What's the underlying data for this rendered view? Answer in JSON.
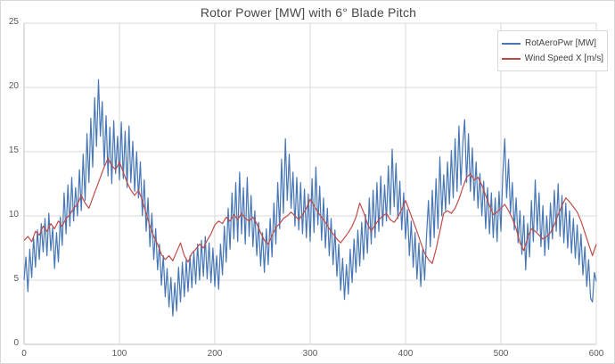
{
  "chart": {
    "title": "Rotor Power [MW] with 6° Blade Pitch",
    "legend": {
      "entries": [
        {
          "label": "RotAeroPwr [MW]",
          "color": "#4676b5"
        },
        {
          "label": "Wind Speed X [m/s]",
          "color": "#bf4b47"
        }
      ]
    }
  },
  "chart_data": {
    "type": "line",
    "title": "Rotor Power [MW] with 6° Blade Pitch",
    "xlabel": "",
    "ylabel": "",
    "xlim": [
      0,
      600
    ],
    "ylim": [
      0,
      25
    ],
    "grid": "horizontal-and-vertical",
    "legend_position": "top-right",
    "x_ticks": [
      "0",
      "100",
      "200",
      "300",
      "400",
      "500",
      "600"
    ],
    "y_ticks": [
      "0",
      "5",
      "10",
      "15",
      "20",
      "25"
    ],
    "accent_colors": {
      "blue": "#4676b5",
      "red": "#bf4b47",
      "gridline": "#d9d9d9",
      "axis": "#bfbfbf"
    },
    "series": [
      {
        "name": "RotAeroPwr [MW]",
        "color": "#4676b5",
        "x_start": 0,
        "x_step": 2,
        "values": [
          5.0,
          6.8,
          4.1,
          7.4,
          5.2,
          8.3,
          6.0,
          8.9,
          6.6,
          9.4,
          7.2,
          9.8,
          6.9,
          10.2,
          7.3,
          9.1,
          5.9,
          8.7,
          6.4,
          9.9,
          7.7,
          11.8,
          8.6,
          12.4,
          9.2,
          13.0,
          9.6,
          12.2,
          10.0,
          13.6,
          10.4,
          14.8,
          11.2,
          16.4,
          12.6,
          17.6,
          13.8,
          19.2,
          15.4,
          20.6,
          16.2,
          18.9,
          13.9,
          17.8,
          13.1,
          16.9,
          12.5,
          17.4,
          13.3,
          16.2,
          12.8,
          17.3,
          12.9,
          16.6,
          12.2,
          17.0,
          12.6,
          15.8,
          11.9,
          15.0,
          11.4,
          14.2,
          10.0,
          12.8,
          8.8,
          11.4,
          7.6,
          10.2,
          6.6,
          9.0,
          5.8,
          7.8,
          4.6,
          6.9,
          3.7,
          5.9,
          2.9,
          5.2,
          2.2,
          4.8,
          2.6,
          6.0,
          3.3,
          6.4,
          3.7,
          6.6,
          4.1,
          6.9,
          4.4,
          7.2,
          4.7,
          7.8,
          5.0,
          8.1,
          5.3,
          8.4,
          5.1,
          7.9,
          4.8,
          7.5,
          4.5,
          6.9,
          4.3,
          7.8,
          5.4,
          9.2,
          6.4,
          10.6,
          7.4,
          11.8,
          8.2,
          12.6,
          8.0,
          13.4,
          8.6,
          12.2,
          7.8,
          13.0,
          8.4,
          11.6,
          7.6,
          10.4,
          6.9,
          9.5,
          6.1,
          8.7,
          5.6,
          9.0,
          6.2,
          9.8,
          6.8,
          11.0,
          7.8,
          12.6,
          9.0,
          14.4,
          10.2,
          16.0,
          11.2,
          14.8,
          10.6,
          13.4,
          9.2,
          13.0,
          8.9,
          12.6,
          8.6,
          12.1,
          8.3,
          11.7,
          8.0,
          12.9,
          8.7,
          13.8,
          9.3,
          12.3,
          8.1,
          11.4,
          7.5,
          10.6,
          6.9,
          9.8,
          6.2,
          8.9,
          5.3,
          7.8,
          4.2,
          6.7,
          3.5,
          6.2,
          3.9,
          7.4,
          4.8,
          8.2,
          5.6,
          8.9,
          6.1,
          9.5,
          6.6,
          10.1,
          7.1,
          11.4,
          7.8,
          12.0,
          8.3,
          12.6,
          8.8,
          13.1,
          9.2,
          12.4,
          9.6,
          13.9,
          10.1,
          15.2,
          10.7,
          14.1,
          9.8,
          12.7,
          8.9,
          11.8,
          8.2,
          10.5,
          6.9,
          9.6,
          6.0,
          8.7,
          5.1,
          7.9,
          4.5,
          7.4,
          5.0,
          8.4,
          11.2,
          7.6,
          12.0,
          8.3,
          12.9,
          9.0,
          14.6,
          10.0,
          13.2,
          10.4,
          14.2,
          10.9,
          15.1,
          11.4,
          16.0,
          11.9,
          17.0,
          12.4,
          15.6,
          17.5,
          12.6,
          16.4,
          11.9,
          15.3,
          11.2,
          14.2,
          10.6,
          13.3,
          10.0,
          12.7,
          9.0,
          12.2,
          8.6,
          11.8,
          8.3,
          11.4,
          8.0,
          11.9,
          8.8,
          13.2,
          16.0,
          11.4,
          14.4,
          10.2,
          12.6,
          8.9,
          11.4,
          7.9,
          10.4,
          7.0,
          10.0,
          5.8,
          9.4,
          6.8,
          11.2,
          8.0,
          12.8,
          8.8,
          11.8,
          7.6,
          10.8,
          6.9,
          10.0,
          7.4,
          11.0,
          8.2,
          12.0,
          8.8,
          12.5,
          8.4,
          11.6,
          7.9,
          11.0,
          7.5,
          10.4,
          7.1,
          9.8,
          6.7,
          9.3,
          6.2,
          8.6,
          5.4,
          7.6,
          4.5,
          6.6,
          3.6,
          3.3,
          5.6,
          4.9
        ]
      },
      {
        "name": "Wind Speed X [m/s]",
        "color": "#bf4b47",
        "x_start": 0,
        "x_step": 4,
        "values": [
          8.1,
          8.4,
          8.0,
          8.8,
          8.5,
          9.2,
          8.8,
          9.4,
          9.0,
          9.6,
          9.2,
          9.8,
          10.1,
          10.6,
          10.9,
          11.6,
          11.0,
          10.6,
          11.4,
          12.2,
          13.0,
          13.8,
          14.5,
          13.9,
          13.6,
          14.2,
          13.4,
          12.6,
          12.0,
          11.6,
          12.0,
          11.2,
          10.2,
          9.2,
          8.4,
          7.8,
          7.0,
          6.6,
          6.9,
          6.5,
          7.2,
          7.9,
          6.9,
          6.4,
          7.1,
          7.4,
          7.8,
          7.5,
          8.1,
          8.6,
          9.3,
          9.6,
          9.4,
          9.9,
          9.6,
          10.1,
          9.7,
          10.2,
          9.8,
          9.6,
          9.9,
          9.4,
          8.7,
          8.1,
          7.8,
          8.5,
          9.1,
          9.4,
          9.8,
          10.0,
          10.3,
          10.0,
          9.7,
          10.1,
          10.6,
          11.3,
          10.8,
          10.3,
          9.9,
          9.5,
          9.0,
          8.6,
          8.2,
          7.9,
          8.3,
          8.7,
          9.2,
          9.9,
          11.0,
          10.3,
          9.4,
          8.8,
          9.3,
          9.7,
          10.0,
          10.2,
          9.7,
          9.5,
          9.9,
          10.5,
          11.2,
          10.4,
          9.6,
          8.8,
          7.9,
          7.1,
          6.6,
          6.3,
          7.4,
          8.8,
          10.2,
          10.4,
          10.2,
          10.6,
          11.3,
          12.2,
          13.0,
          13.3,
          12.8,
          13.0,
          12.4,
          11.6,
          10.8,
          10.1,
          10.3,
          10.6,
          10.9,
          10.4,
          9.8,
          9.0,
          7.9,
          7.3,
          8.3,
          9.0,
          8.8,
          8.5,
          8.2,
          8.4,
          8.7,
          9.3,
          10.1,
          10.8,
          11.4,
          11.1,
          10.7,
          10.3,
          9.6,
          8.7,
          7.8,
          6.9,
          7.8
        ]
      }
    ]
  }
}
